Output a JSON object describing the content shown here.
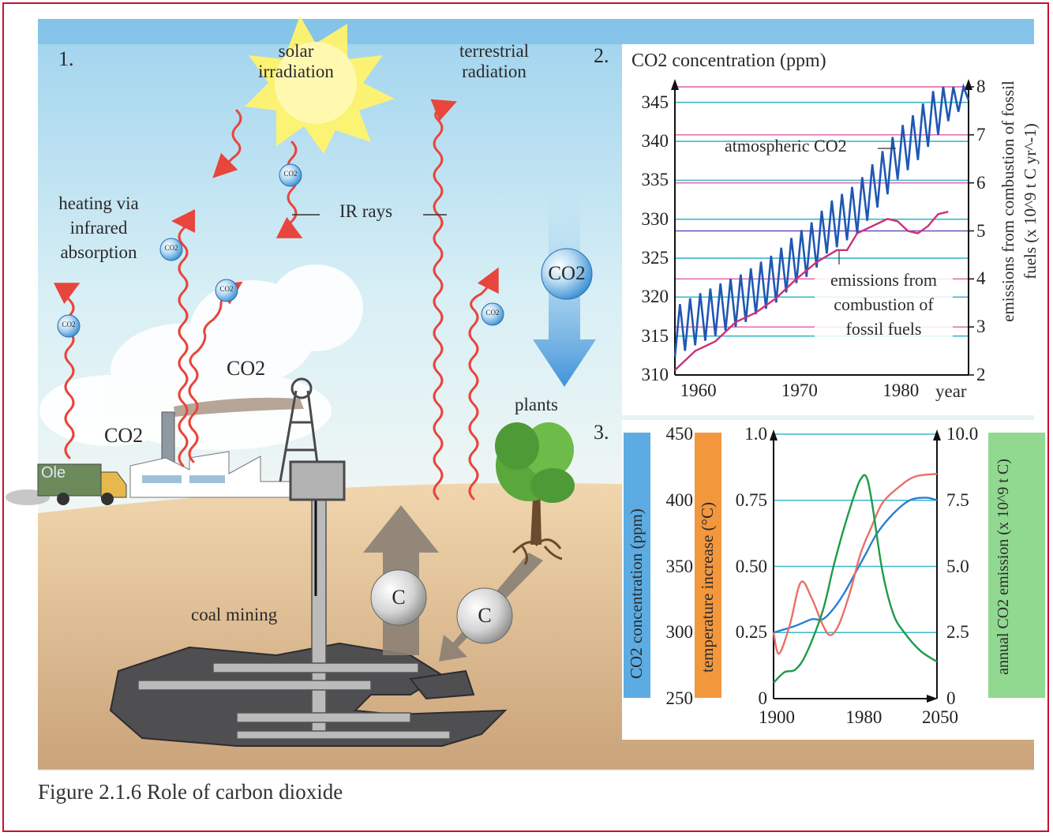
{
  "figure": {
    "caption": "Figure 2.1.6 Role of carbon dioxide"
  },
  "panel1": {
    "number": "1.",
    "labels": {
      "solar": "solar irradiation",
      "terrestrial": "terrestrial radiation",
      "heating": "heating via infrared absorption",
      "ir_rays": "IR rays",
      "co2_left": "CO2",
      "co2_mid": "CO2",
      "co2_bubble": "CO2",
      "small_bubble": "CO2",
      "plants": "plants",
      "coal_mining": "coal mining",
      "carbon": "C",
      "truck_text": "Ole"
    },
    "icons": [
      "sun-icon",
      "truck-icon",
      "factory-icon",
      "mine-tower-icon",
      "tree-icon",
      "carbon-ball-icon",
      "co2-bubble-icon"
    ],
    "colors": {
      "sky": "#bfe3f0",
      "ground": "#e7c79a",
      "radiation": "#e8453c",
      "co2_arrow": "#3d8fd6",
      "sun": "#fff27a"
    }
  },
  "panel2": {
    "number": "2.",
    "chart_data": {
      "type": "line",
      "title": "CO2 concentration (ppm)",
      "ylabel_right": "emissions from combustion of fossil fuels (x 10^9 t C yr^-1)",
      "xlabel": "year",
      "xlim": [
        1958,
        1987
      ],
      "ylim": [
        310,
        347
      ],
      "ylim_right": [
        2,
        8
      ],
      "x_ticks": [
        "1960",
        "1970",
        "1980"
      ],
      "y_ticks": [
        "310",
        "315",
        "320",
        "325",
        "330",
        "335",
        "340",
        "345"
      ],
      "y_ticks_right": [
        "2",
        "3",
        "4",
        "5",
        "6",
        "7",
        "8"
      ],
      "series": [
        {
          "name": "atmospheric CO2",
          "axis": "left",
          "color": "#1f57b3",
          "x": [
            1958,
            1959,
            1960,
            1961,
            1962,
            1963,
            1964,
            1965,
            1966,
            1967,
            1968,
            1969,
            1970,
            1971,
            1972,
            1973,
            1974,
            1975,
            1976,
            1977,
            1978,
            1979,
            1980,
            1981,
            1982,
            1983,
            1984,
            1985,
            1986,
            1987
          ],
          "values": [
            315.5,
            316.3,
            317.0,
            317.6,
            318.2,
            318.9,
            319.4,
            320.0,
            321.0,
            321.7,
            322.5,
            323.8,
            325.0,
            325.8,
            327.0,
            328.8,
            329.6,
            330.5,
            331.4,
            333.0,
            334.7,
            336.4,
            338.3,
            339.5,
            340.8,
            342.5,
            344.0,
            345.8,
            347.0,
            348.5
          ],
          "seasonal_amplitude": 3.2
        },
        {
          "name": "emissions from combustion of fossil fuels",
          "axis": "right",
          "color": "#c8327a",
          "x": [
            1958,
            1960,
            1962,
            1964,
            1966,
            1968,
            1970,
            1972,
            1974,
            1975,
            1976,
            1978,
            1979,
            1980,
            1981,
            1982,
            1983,
            1984,
            1985
          ],
          "values": [
            2.1,
            2.5,
            2.7,
            3.1,
            3.3,
            3.6,
            4.0,
            4.35,
            4.6,
            4.6,
            4.95,
            5.15,
            5.25,
            5.2,
            5.0,
            4.95,
            5.1,
            5.35,
            5.4
          ]
        }
      ],
      "annotations": [
        "atmospheric CO2",
        "emissions from combustion of fossil fuels"
      ],
      "grid_colors": [
        "#3cb8c8",
        "#e05aa8",
        "#6a4fc0"
      ]
    }
  },
  "panel3": {
    "number": "3.",
    "chart_data": {
      "type": "line",
      "xlim": [
        1900,
        2050
      ],
      "x_ticks": [
        "1900",
        "1980",
        "2050"
      ],
      "axes": {
        "co2": {
          "label": "CO2 concentration (ppm)",
          "ticks": [
            "250",
            "300",
            "350",
            "400",
            "450"
          ],
          "range": [
            250,
            450
          ],
          "band_color": "#4aa3e0"
        },
        "temperature": {
          "label": "temperature increase (°C)",
          "ticks": [
            "0",
            "0.25",
            "0.50",
            "0.75",
            "1.0"
          ],
          "range": [
            0,
            1.0
          ],
          "band_color": "#f28c28"
        },
        "emission": {
          "label": "annual CO2 emission (x 10^9 t C)",
          "ticks": [
            "0",
            "2.5",
            "5.0",
            "7.5",
            "10.0"
          ],
          "range": [
            0,
            10
          ],
          "band_color": "#5cc85c"
        }
      },
      "series": [
        {
          "name": "CO2 concentration",
          "axis": "co2",
          "color": "#2a7fd4",
          "x": [
            1900,
            1920,
            1935,
            1945,
            1955,
            1965,
            1975,
            1985,
            1995,
            2010,
            2025,
            2040,
            2050
          ],
          "values": [
            300,
            305,
            310,
            310,
            318,
            330,
            345,
            360,
            375,
            390,
            400,
            402,
            400
          ]
        },
        {
          "name": "temperature increase",
          "axis": "temperature",
          "color": "#e8706a",
          "x": [
            1900,
            1905,
            1915,
            1925,
            1935,
            1945,
            1952,
            1960,
            1970,
            1980,
            1990,
            2000,
            2015,
            2030,
            2050
          ],
          "values": [
            0.25,
            0.17,
            0.28,
            0.44,
            0.38,
            0.28,
            0.24,
            0.28,
            0.4,
            0.55,
            0.65,
            0.74,
            0.8,
            0.84,
            0.85
          ]
        },
        {
          "name": "annual CO2 emission",
          "axis": "emission",
          "color": "#1f9a4a",
          "x": [
            1900,
            1910,
            1920,
            1930,
            1945,
            1955,
            1965,
            1975,
            1980,
            1985,
            1990,
            2000,
            2010,
            2020,
            2035,
            2050
          ],
          "values": [
            0.6,
            1.0,
            1.1,
            1.7,
            3.3,
            5.0,
            6.5,
            7.8,
            8.3,
            8.4,
            7.5,
            4.8,
            3.2,
            2.5,
            1.8,
            1.4
          ]
        }
      ],
      "grid_color": "#3cb8c8"
    }
  }
}
